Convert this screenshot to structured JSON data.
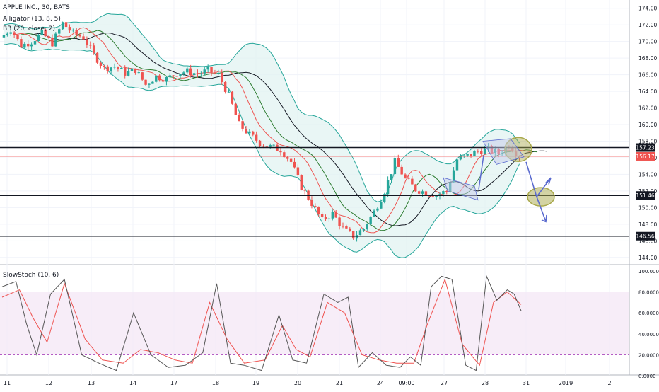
{
  "legend": {
    "symbol": "APPLE INC., 30, BATS",
    "alligator": "Alligator (13, 8, 5)",
    "bb": "BB (20, close, 2)",
    "stoch": "SlowStoch (10, 6)"
  },
  "colors": {
    "up": "#26a69a",
    "down": "#ef5350",
    "bb_line": "#26a69a",
    "bb_fill": "#e0f2f1",
    "stoch_band": "#f3e5f5",
    "stoch_k": "#555555",
    "stoch_d": "#ef5350",
    "arrow": "#5b6bcf",
    "highlight": "#a8a84a"
  },
  "chart_data": [
    {
      "type": "candlestick",
      "title": "APPLE INC., 30, BATS",
      "ylim": [
        143.3,
        175
      ],
      "y_ticks": [
        "174.00",
        "172.00",
        "170.00",
        "168.00",
        "166.00",
        "164.00",
        "162.00",
        "160.00",
        "158.00",
        "156.00",
        "154.00",
        "152.00",
        "150.00",
        "148.00",
        "146.00",
        "144.00"
      ],
      "x_ticks": [
        "11",
        "12",
        "13",
        "14",
        "17",
        "18",
        "19",
        "20",
        "21",
        "24",
        "09:00",
        "27",
        "28",
        "29",
        "30",
        "31",
        "2019",
        "2"
      ],
      "price_labels": [
        {
          "value": "157.23",
          "price": 157.23,
          "color": "#131722"
        },
        {
          "value": "156.17",
          "price": 156.17,
          "color": "#ef5350"
        },
        {
          "value": "151.46",
          "price": 151.46,
          "color": "#131722"
        },
        {
          "value": "146.56",
          "price": 146.56,
          "color": "#131722"
        }
      ],
      "horizontal_lines": [
        157.23,
        151.46,
        146.56
      ],
      "last_price_line": 156.17,
      "path": [
        [
          0,
          170.5
        ],
        [
          3,
          171.5
        ],
        [
          6,
          169.5
        ],
        [
          9,
          170
        ],
        [
          12,
          171
        ],
        [
          15,
          169.8
        ],
        [
          18,
          172.2
        ],
        [
          21,
          171
        ],
        [
          24,
          170.5
        ],
        [
          27,
          168.4
        ],
        [
          30,
          166.8
        ],
        [
          33,
          167
        ],
        [
          36,
          166.2
        ],
        [
          39,
          166.6
        ],
        [
          42,
          164.8
        ],
        [
          45,
          165.8
        ],
        [
          48,
          165.5
        ],
        [
          51,
          166.2
        ],
        [
          54,
          166.4
        ],
        [
          57,
          166.1
        ],
        [
          60,
          166.5
        ],
        [
          63,
          166
        ],
        [
          66,
          163.5
        ],
        [
          69,
          160
        ],
        [
          72,
          158.8
        ],
        [
          75,
          157.8
        ],
        [
          78,
          157.3
        ],
        [
          81,
          157
        ],
        [
          84,
          155.5
        ],
        [
          87,
          152.5
        ],
        [
          90,
          150.5
        ],
        [
          93,
          148.5
        ],
        [
          96,
          149.3
        ],
        [
          99,
          147.5
        ],
        [
          102,
          146.5
        ],
        [
          105,
          147.5
        ],
        [
          108,
          149.5
        ],
        [
          111,
          152
        ],
        [
          114,
          155.5
        ],
        [
          117,
          153.5
        ],
        [
          120,
          152.2
        ],
        [
          123,
          151.8
        ],
        [
          126,
          151.5
        ],
        [
          129,
          152
        ],
        [
          132,
          155.8
        ],
        [
          135,
          156.2
        ],
        [
          138,
          156.8
        ],
        [
          141,
          157
        ],
        [
          144,
          156.5
        ],
        [
          147,
          157.6
        ],
        [
          150,
          156.17
        ]
      ],
      "n_candles": 150,
      "stochastic": {
        "ylim": [
          0,
          100
        ],
        "y_ticks": [
          "100.0000",
          "80.0000",
          "60.0000",
          "40.0000",
          "20.0000",
          "0.0000"
        ],
        "bands": [
          20,
          80
        ],
        "k_path": [
          [
            0,
            85
          ],
          [
            4,
            90
          ],
          [
            7,
            50
          ],
          [
            10,
            20
          ],
          [
            14,
            78
          ],
          [
            18,
            92
          ],
          [
            23,
            20
          ],
          [
            28,
            12
          ],
          [
            33,
            5
          ],
          [
            38,
            60
          ],
          [
            43,
            20
          ],
          [
            48,
            8
          ],
          [
            53,
            10
          ],
          [
            58,
            22
          ],
          [
            62,
            88
          ],
          [
            66,
            12
          ],
          [
            70,
            10
          ],
          [
            75,
            5
          ],
          [
            80,
            58
          ],
          [
            84,
            15
          ],
          [
            88,
            12
          ],
          [
            93,
            78
          ],
          [
            97,
            70
          ],
          [
            100,
            75
          ],
          [
            103,
            8
          ],
          [
            107,
            22
          ],
          [
            111,
            10
          ],
          [
            115,
            8
          ],
          [
            118,
            18
          ],
          [
            121,
            10
          ],
          [
            124,
            85
          ],
          [
            127,
            95
          ],
          [
            130,
            92
          ],
          [
            134,
            10
          ],
          [
            137,
            5
          ],
          [
            140,
            95
          ],
          [
            143,
            72
          ],
          [
            146,
            82
          ],
          [
            148,
            78
          ],
          [
            150,
            62
          ]
        ],
        "d_path": [
          [
            0,
            75
          ],
          [
            5,
            82
          ],
          [
            9,
            55
          ],
          [
            13,
            32
          ],
          [
            18,
            88
          ],
          [
            24,
            35
          ],
          [
            29,
            15
          ],
          [
            35,
            12
          ],
          [
            40,
            25
          ],
          [
            45,
            22
          ],
          [
            50,
            15
          ],
          [
            55,
            12
          ],
          [
            60,
            70
          ],
          [
            65,
            35
          ],
          [
            70,
            12
          ],
          [
            76,
            15
          ],
          [
            81,
            48
          ],
          [
            85,
            25
          ],
          [
            89,
            18
          ],
          [
            94,
            70
          ],
          [
            99,
            60
          ],
          [
            104,
            20
          ],
          [
            109,
            15
          ],
          [
            114,
            12
          ],
          [
            119,
            12
          ],
          [
            123,
            50
          ],
          [
            128,
            92
          ],
          [
            133,
            30
          ],
          [
            138,
            10
          ],
          [
            142,
            70
          ],
          [
            146,
            80
          ],
          [
            150,
            68
          ]
        ]
      }
    }
  ]
}
